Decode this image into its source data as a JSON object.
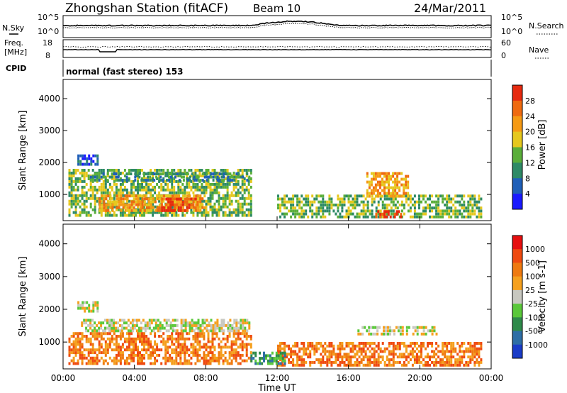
{
  "header": {
    "title": "Zhongshan Station (fitACF)",
    "beam": "Beam 10",
    "date": "24/Mar/2011"
  },
  "noise_panel": {
    "left_label": "N.Sky",
    "left_ticks": [
      "10^5",
      "10^0"
    ],
    "right_ticks": [
      "10^5",
      "10^0"
    ],
    "right_label": "N.Search"
  },
  "freq_panel": {
    "left_label_1": "Freq.",
    "left_label_2": "[MHz]",
    "left_ticks": [
      "18",
      "8"
    ],
    "right_ticks": [
      "60",
      "0"
    ],
    "right_label": "Nave"
  },
  "cpid": {
    "label": "CPID",
    "value": "normal (fast stereo) 153"
  },
  "chart_data": [
    {
      "type": "heatmap",
      "panel": "power",
      "ylabel": "Slant Range [km]",
      "xlabel": "",
      "yticks": [
        "1000",
        "2000",
        "3000",
        "4000"
      ],
      "ylim": [
        180,
        4600
      ],
      "xlim": [
        0,
        24
      ],
      "colorbar_label": "Power [dB]",
      "colorbar_ticks": [
        "4",
        "8",
        "12",
        "16",
        "20",
        "24",
        "28"
      ],
      "colorbar_colors": [
        "#1a1aff",
        "#1f5fb8",
        "#2e8a66",
        "#5aae3a",
        "#e6c81e",
        "#f59a14",
        "#ef6a10",
        "#e62a0f"
      ],
      "regions": [
        {
          "t0": 0.3,
          "t1": 10.6,
          "r0": 300,
          "r1": 1800,
          "level": 3
        },
        {
          "t0": 2.0,
          "t1": 8.0,
          "r0": 450,
          "r1": 1000,
          "level": 5
        },
        {
          "t0": 5.5,
          "t1": 7.6,
          "r0": 450,
          "r1": 900,
          "level": 7
        },
        {
          "t0": 1.5,
          "t1": 10.5,
          "r0": 1400,
          "r1": 1700,
          "level": 2
        },
        {
          "t0": 0.8,
          "t1": 2.0,
          "r0": 1900,
          "r1": 2250,
          "level": 1
        },
        {
          "t0": 12.0,
          "t1": 23.5,
          "r0": 250,
          "r1": 1000,
          "level": 3
        },
        {
          "t0": 17.0,
          "t1": 19.4,
          "r0": 900,
          "r1": 1700,
          "level": 5
        },
        {
          "t0": 17.5,
          "t1": 19.0,
          "r0": 250,
          "r1": 500,
          "level": 7
        }
      ]
    },
    {
      "type": "heatmap",
      "panel": "velocity",
      "ylabel": "Slant Range [km]",
      "xlabel": "Time UT",
      "yticks": [
        "1000",
        "2000",
        "3000",
        "4000"
      ],
      "ylim": [
        180,
        4600
      ],
      "xlim": [
        0,
        24
      ],
      "xticks": [
        "00:00",
        "04:00",
        "08:00",
        "12:00",
        "16:00",
        "20:00",
        "00:00"
      ],
      "colorbar_label": "Velocity [m s-1]",
      "colorbar_ticks": [
        "1000",
        "500",
        "100",
        "25",
        "-25",
        "-100",
        "-500",
        "-1000"
      ],
      "colorbar_colors": [
        "#1a3cc8",
        "#2e6ea6",
        "#2e8a4a",
        "#5ac83a",
        "#c8c8c0",
        "#f5a01e",
        "#ef7a10",
        "#ef4a10",
        "#e60f0f"
      ],
      "regions": [
        {
          "t0": 0.3,
          "t1": 10.6,
          "r0": 300,
          "r1": 1300,
          "level": 6
        },
        {
          "t0": 1.0,
          "t1": 10.5,
          "r0": 1300,
          "r1": 1700,
          "level": 4
        },
        {
          "t0": 0.8,
          "t1": 2.0,
          "r0": 1900,
          "r1": 2250,
          "level": 4
        },
        {
          "t0": 12.0,
          "t1": 23.5,
          "r0": 250,
          "r1": 1000,
          "level": 6
        },
        {
          "t0": 16.5,
          "t1": 21.0,
          "r0": 1200,
          "r1": 1500,
          "level": 4
        },
        {
          "t0": 10.5,
          "t1": 12.5,
          "r0": 300,
          "r1": 700,
          "level": 2
        }
      ]
    }
  ]
}
